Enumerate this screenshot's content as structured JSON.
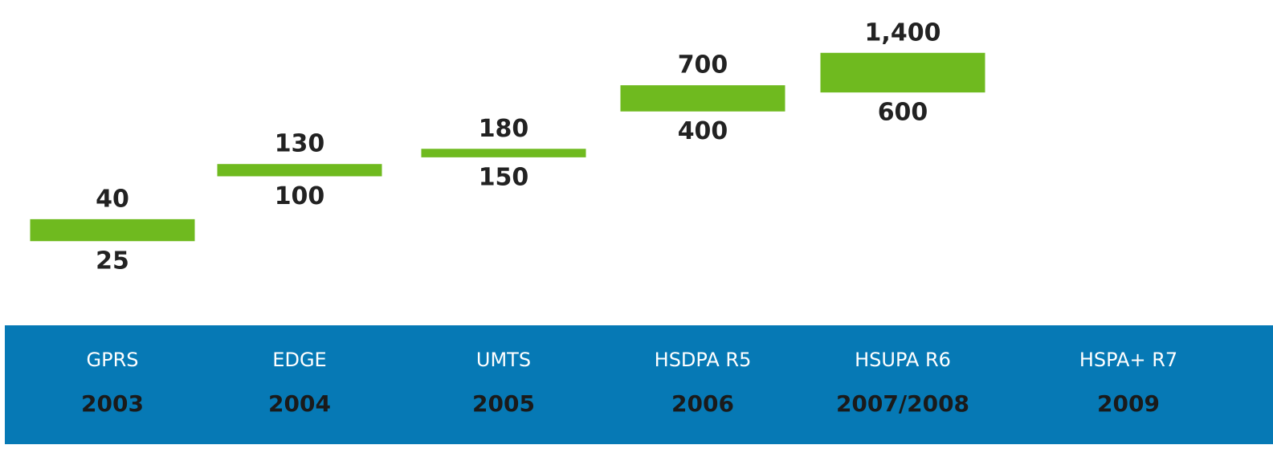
{
  "chart_data": {
    "type": "range-bar",
    "categories": [
      "GPRS",
      "EDGE",
      "UMTS",
      "HSDPA R5",
      "HSUPA R6",
      "HSPA+ R7"
    ],
    "years": [
      "2003",
      "2004",
      "2005",
      "2006",
      "2007/2008",
      "2009"
    ],
    "low": [
      25,
      100,
      150,
      400,
      600,
      null
    ],
    "high": [
      40,
      130,
      180,
      700,
      1400,
      null
    ],
    "high_labels": [
      "40",
      "130",
      "180",
      "700",
      "1,400",
      null
    ],
    "color": "#6fba1f",
    "band_color": "#0679b5",
    "log_scale": true,
    "ylim": [
      15,
      1600
    ]
  }
}
